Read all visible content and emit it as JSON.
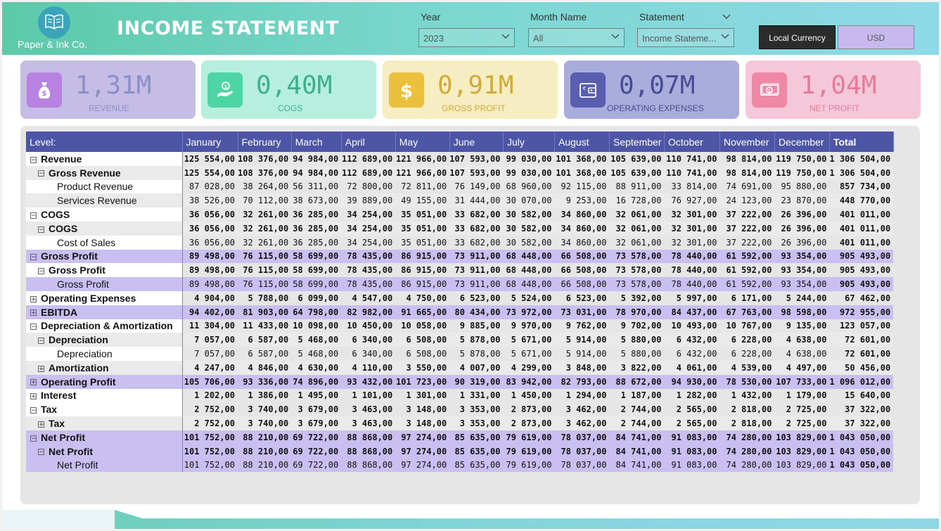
{
  "header": {
    "logo_text": "Paper & Ink Co.",
    "title": "INCOME STATEMENT",
    "filters": {
      "year": {
        "label": "Year",
        "value": "2023"
      },
      "month": {
        "label": "Month Name",
        "value": "All"
      },
      "statement": {
        "label": "Statement",
        "value": "Income Stateme..."
      }
    },
    "currency_buttons": {
      "local": "Local Currency",
      "usd": "USD"
    }
  },
  "kpis": [
    {
      "value": "1,31M",
      "label": "REVENUE",
      "icon": "money-bag-icon",
      "bg": "#c5bde6",
      "icon_bg": "#b882e0",
      "color": "#8a8fc8"
    },
    {
      "value": "0,40M",
      "label": "COGS",
      "icon": "hand-coin-icon",
      "bg": "#b6efdd",
      "icon_bg": "#4dd5a6",
      "color": "#3faf8a"
    },
    {
      "value": "0,91M",
      "label": "GROSS PROFIT",
      "icon": "dollar-icon",
      "bg": "#f7edc3",
      "icon_bg": "#ebc03d",
      "color": "#d1ab37"
    },
    {
      "value": "0,07M",
      "label": "OPERATING EXPENSES",
      "icon": "wallet-icon",
      "bg": "#a9addc",
      "icon_bg": "#5a5eae",
      "color": "#464b94"
    },
    {
      "value": "1,04M",
      "label": "NET PROFIT",
      "icon": "banknote-icon",
      "bg": "#f4c8d8",
      "icon_bg": "#ef87a6",
      "color": "#e57b9b"
    }
  ],
  "table": {
    "columns": [
      "Level:",
      "January",
      "February",
      "March",
      "April",
      "May",
      "June",
      "July",
      "August",
      "September",
      "October",
      "November",
      "December",
      "Total"
    ],
    "rows": [
      {
        "label": "Revenue",
        "indent": 0,
        "toggle": "minus",
        "bold": true,
        "style": "w",
        "values": [
          "125 554,00",
          "108 376,00",
          "94 984,00",
          "112 689,00",
          "121 966,00",
          "107 593,00",
          "99 030,00",
          "101 368,00",
          "105 639,00",
          "110 741,00",
          "98 814,00",
          "119 750,00",
          "1 306 504,00"
        ]
      },
      {
        "label": "Gross Revenue",
        "indent": 1,
        "toggle": "minus",
        "bold": true,
        "style": "g",
        "values": [
          "125 554,00",
          "108 376,00",
          "94 984,00",
          "112 689,00",
          "121 966,00",
          "107 593,00",
          "99 030,00",
          "101 368,00",
          "105 639,00",
          "110 741,00",
          "98 814,00",
          "119 750,00",
          "1 306 504,00"
        ]
      },
      {
        "label": "Product Revenue",
        "indent": 2,
        "toggle": "",
        "bold": false,
        "style": "w",
        "values": [
          "87 028,00",
          "38 264,00",
          "56 311,00",
          "72 800,00",
          "72 811,00",
          "76 149,00",
          "68 960,00",
          "92 115,00",
          "88 911,00",
          "33 814,00",
          "74 691,00",
          "95 880,00",
          "857 734,00"
        ]
      },
      {
        "label": "Services Revenue",
        "indent": 2,
        "toggle": "",
        "bold": false,
        "style": "g",
        "values": [
          "38 526,00",
          "70 112,00",
          "38 673,00",
          "39 889,00",
          "49 155,00",
          "31 444,00",
          "30 070,00",
          "9 253,00",
          "16 728,00",
          "76 927,00",
          "24 123,00",
          "23 870,00",
          "448 770,00"
        ]
      },
      {
        "label": "COGS",
        "indent": 0,
        "toggle": "minus",
        "bold": true,
        "style": "w",
        "values": [
          "36 056,00",
          "32 261,00",
          "36 285,00",
          "34 254,00",
          "35 051,00",
          "33 682,00",
          "30 582,00",
          "34 860,00",
          "32 061,00",
          "32 301,00",
          "37 222,00",
          "26 396,00",
          "401 011,00"
        ]
      },
      {
        "label": "COGS",
        "indent": 1,
        "toggle": "minus",
        "bold": true,
        "style": "g",
        "values": [
          "36 056,00",
          "32 261,00",
          "36 285,00",
          "34 254,00",
          "35 051,00",
          "33 682,00",
          "30 582,00",
          "34 860,00",
          "32 061,00",
          "32 301,00",
          "37 222,00",
          "26 396,00",
          "401 011,00"
        ]
      },
      {
        "label": "Cost of Sales",
        "indent": 2,
        "toggle": "",
        "bold": false,
        "style": "w",
        "values": [
          "36 056,00",
          "32 261,00",
          "36 285,00",
          "34 254,00",
          "35 051,00",
          "33 682,00",
          "30 582,00",
          "34 860,00",
          "32 061,00",
          "32 301,00",
          "37 222,00",
          "26 396,00",
          "401 011,00"
        ]
      },
      {
        "label": "Gross Profit",
        "indent": 0,
        "toggle": "minus",
        "bold": true,
        "style": "hl",
        "values": [
          "89 498,00",
          "76 115,00",
          "58 699,00",
          "78 435,00",
          "86 915,00",
          "73 911,00",
          "68 448,00",
          "66 508,00",
          "73 578,00",
          "78 440,00",
          "61 592,00",
          "93 354,00",
          "905 493,00"
        ]
      },
      {
        "label": "Gross Profit",
        "indent": 1,
        "toggle": "minus",
        "bold": true,
        "style": "w",
        "values": [
          "89 498,00",
          "76 115,00",
          "58 699,00",
          "78 435,00",
          "86 915,00",
          "73 911,00",
          "68 448,00",
          "66 508,00",
          "73 578,00",
          "78 440,00",
          "61 592,00",
          "93 354,00",
          "905 493,00"
        ]
      },
      {
        "label": "Gross Profit",
        "indent": 2,
        "toggle": "",
        "bold": false,
        "style": "hl",
        "values": [
          "89 498,00",
          "76 115,00",
          "58 699,00",
          "78 435,00",
          "86 915,00",
          "73 911,00",
          "68 448,00",
          "66 508,00",
          "73 578,00",
          "78 440,00",
          "61 592,00",
          "93 354,00",
          "905 493,00"
        ]
      },
      {
        "label": "Operating Expenses",
        "indent": 0,
        "toggle": "plus",
        "bold": true,
        "style": "w",
        "values": [
          "4 904,00",
          "5 788,00",
          "6 099,00",
          "4 547,00",
          "4 750,00",
          "6 523,00",
          "5 524,00",
          "6 523,00",
          "5 392,00",
          "5 997,00",
          "6 171,00",
          "5 244,00",
          "67 462,00"
        ]
      },
      {
        "label": "EBITDA",
        "indent": 0,
        "toggle": "plus",
        "bold": true,
        "style": "hl",
        "values": [
          "94 402,00",
          "81 903,00",
          "64 798,00",
          "82 982,00",
          "91 665,00",
          "80 434,00",
          "73 972,00",
          "73 031,00",
          "78 970,00",
          "84 437,00",
          "67 763,00",
          "98 598,00",
          "972 955,00"
        ]
      },
      {
        "label": "Depreciation & Amortization",
        "indent": 0,
        "toggle": "minus",
        "bold": true,
        "style": "w",
        "values": [
          "11 304,00",
          "11 433,00",
          "10 098,00",
          "10 450,00",
          "10 058,00",
          "9 885,00",
          "9 970,00",
          "9 762,00",
          "9 702,00",
          "10 493,00",
          "10 767,00",
          "9 135,00",
          "123 057,00"
        ]
      },
      {
        "label": "Depreciation",
        "indent": 1,
        "toggle": "minus",
        "bold": true,
        "style": "g",
        "values": [
          "7 057,00",
          "6 587,00",
          "5 468,00",
          "6 340,00",
          "6 508,00",
          "5 878,00",
          "5 671,00",
          "5 914,00",
          "5 880,00",
          "6 432,00",
          "6 228,00",
          "4 638,00",
          "72 601,00"
        ]
      },
      {
        "label": "Depreciation",
        "indent": 2,
        "toggle": "",
        "bold": false,
        "style": "w",
        "values": [
          "7 057,00",
          "6 587,00",
          "5 468,00",
          "6 340,00",
          "6 508,00",
          "5 878,00",
          "5 671,00",
          "5 914,00",
          "5 880,00",
          "6 432,00",
          "6 228,00",
          "4 638,00",
          "72 601,00"
        ]
      },
      {
        "label": "Amortization",
        "indent": 1,
        "toggle": "plus",
        "bold": true,
        "style": "g",
        "values": [
          "4 247,00",
          "4 846,00",
          "4 630,00",
          "4 110,00",
          "3 550,00",
          "4 007,00",
          "4 299,00",
          "3 848,00",
          "3 822,00",
          "4 061,00",
          "4 539,00",
          "4 497,00",
          "50 456,00"
        ]
      },
      {
        "label": "Operating Profit",
        "indent": 0,
        "toggle": "plus",
        "bold": true,
        "style": "hl",
        "values": [
          "105 706,00",
          "93 336,00",
          "74 896,00",
          "93 432,00",
          "101 723,00",
          "90 319,00",
          "83 942,00",
          "82 793,00",
          "88 672,00",
          "94 930,00",
          "78 530,00",
          "107 733,00",
          "1 096 012,00"
        ]
      },
      {
        "label": "Interest",
        "indent": 0,
        "toggle": "plus",
        "bold": true,
        "style": "w",
        "values": [
          "1 202,00",
          "1 386,00",
          "1 495,00",
          "1 101,00",
          "1 301,00",
          "1 331,00",
          "1 450,00",
          "1 294,00",
          "1 187,00",
          "1 282,00",
          "1 432,00",
          "1 179,00",
          "15 640,00"
        ]
      },
      {
        "label": "Tax",
        "indent": 0,
        "toggle": "minus",
        "bold": true,
        "style": "w",
        "values": [
          "2 752,00",
          "3 740,00",
          "3 679,00",
          "3 463,00",
          "3 148,00",
          "3 353,00",
          "2 873,00",
          "3 462,00",
          "2 744,00",
          "2 565,00",
          "2 818,00",
          "2 725,00",
          "37 322,00"
        ]
      },
      {
        "label": "Tax",
        "indent": 1,
        "toggle": "plus",
        "bold": true,
        "style": "g",
        "values": [
          "2 752,00",
          "3 740,00",
          "3 679,00",
          "3 463,00",
          "3 148,00",
          "3 353,00",
          "2 873,00",
          "3 462,00",
          "2 744,00",
          "2 565,00",
          "2 818,00",
          "2 725,00",
          "37 322,00"
        ]
      },
      {
        "label": "Net Profit",
        "indent": 0,
        "toggle": "minus",
        "bold": true,
        "style": "hl",
        "values": [
          "101 752,00",
          "88 210,00",
          "69 722,00",
          "88 868,00",
          "97 274,00",
          "85 635,00",
          "79 619,00",
          "78 037,00",
          "84 741,00",
          "91 083,00",
          "74 280,00",
          "103 829,00",
          "1 043 050,00"
        ]
      },
      {
        "label": "Net Profit",
        "indent": 1,
        "toggle": "minus",
        "bold": true,
        "style": "hl",
        "values": [
          "101 752,00",
          "88 210,00",
          "69 722,00",
          "88 868,00",
          "97 274,00",
          "85 635,00",
          "79 619,00",
          "78 037,00",
          "84 741,00",
          "91 083,00",
          "74 280,00",
          "103 829,00",
          "1 043 050,00"
        ]
      },
      {
        "label": "Net Profit",
        "indent": 2,
        "toggle": "",
        "bold": false,
        "style": "hl",
        "values": [
          "101 752,00",
          "88 210,00",
          "69 722,00",
          "88 868,00",
          "97 274,00",
          "85 635,00",
          "79 619,00",
          "78 037,00",
          "84 741,00",
          "91 083,00",
          "74 280,00",
          "103 829,00",
          "1 043 050,00"
        ]
      }
    ]
  }
}
